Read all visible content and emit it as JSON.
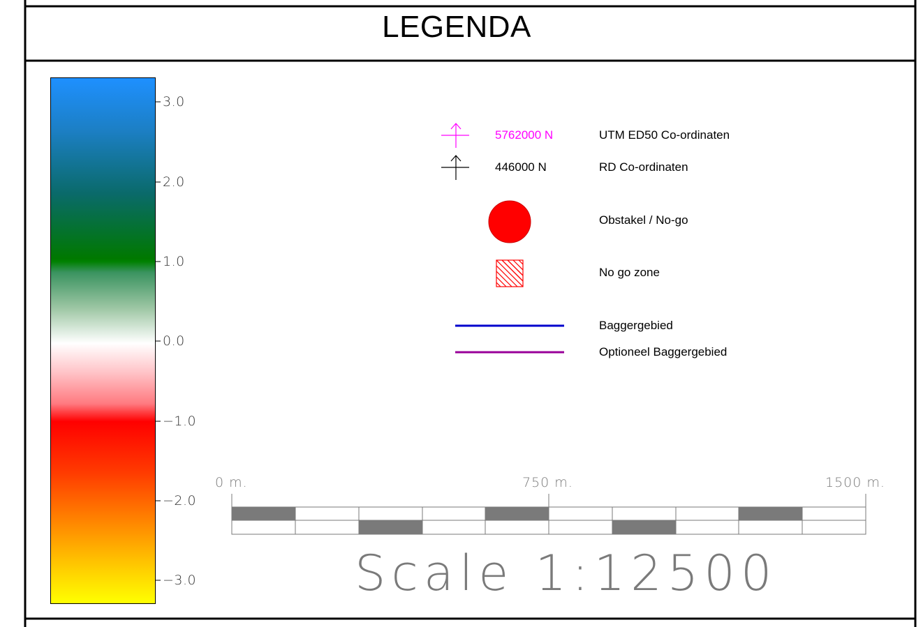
{
  "title": "LEGENDA",
  "colorbar": {
    "ticks": [
      "3.0",
      "2.0",
      "1.0",
      "0.0",
      "−1.0",
      "−2.0",
      "−3.0"
    ],
    "colors": [
      "#1e90ff",
      "#008000",
      "#ffffff",
      "#ff0000",
      "#ffff00"
    ]
  },
  "legend": {
    "utm": {
      "value": "5762000 N",
      "label": "UTM ED50 Co-ordinaten",
      "color": "#ff00ff"
    },
    "rd": {
      "value": "446000 N",
      "label": "RD Co-ordinaten",
      "color": "#000000"
    },
    "obstacle": {
      "label": "Obstakel / No-go",
      "color": "#ff0000"
    },
    "nogo_zone": {
      "label": "No go zone",
      "color": "#ff0000"
    },
    "dredge": {
      "label": "Baggergebied",
      "color": "#0000cc"
    },
    "optional_dredge": {
      "label": "Optioneel Baggergebied",
      "color": "#990099"
    }
  },
  "scale": {
    "start": "0  m.",
    "mid": "750  m.",
    "end": "1500  m.",
    "title": "Scale  1:12500"
  }
}
